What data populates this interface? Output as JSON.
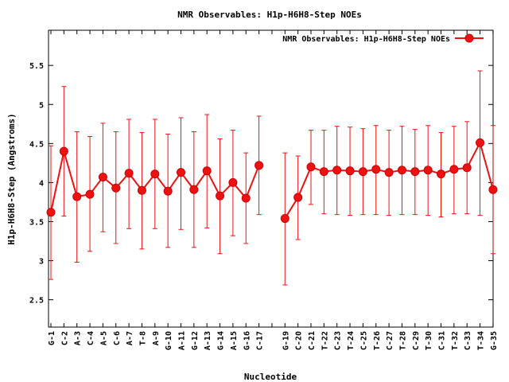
{
  "chart_data": {
    "type": "line",
    "title": "NMR Observables: H1p-H6H8-Step NOEs",
    "xlabel": "Nucleotide",
    "ylabel": "H1p-H6H8-Step (Angstroms)",
    "ylim": [
      2.15,
      5.95
    ],
    "yticks": [
      2.5,
      3,
      3.5,
      4,
      4.5,
      5,
      5.5
    ],
    "ytick_labels": [
      "2.5",
      "3",
      "3.5",
      "4",
      "4.5",
      "5",
      "5.5"
    ],
    "grid": false,
    "legend_position": "top-right",
    "line_color": "#ee1111",
    "error_bars": true,
    "categories": [
      "G-1",
      "C-2",
      "A-3",
      "C-4",
      "A-5",
      "C-6",
      "A-7",
      "T-8",
      "A-9",
      "G-10",
      "A-11",
      "G-12",
      "A-13",
      "G-14",
      "A-15",
      "G-16",
      "C-17",
      "",
      "G-19",
      "C-20",
      "C-21",
      "T-22",
      "C-23",
      "T-24",
      "C-25",
      "T-26",
      "C-27",
      "T-28",
      "C-29",
      "T-30",
      "C-31",
      "T-32",
      "C-33",
      "T-34",
      "G-35"
    ],
    "series": [
      {
        "name": "NMR Observables: H1p-H6H8-Step NOEs",
        "values": [
          3.62,
          4.4,
          3.82,
          3.85,
          4.07,
          3.93,
          4.12,
          3.9,
          4.11,
          3.89,
          4.13,
          3.91,
          4.15,
          3.83,
          4.0,
          3.8,
          4.22,
          null,
          3.54,
          3.81,
          4.2,
          4.14,
          4.16,
          4.15,
          4.14,
          4.17,
          4.13,
          4.16,
          4.14,
          4.16,
          4.11,
          4.17,
          4.19,
          4.51,
          3.91
        ],
        "upper": [
          4.47,
          5.23,
          4.65,
          4.59,
          4.76,
          4.65,
          4.81,
          4.64,
          4.81,
          4.62,
          4.83,
          4.65,
          4.87,
          4.56,
          4.67,
          4.38,
          4.85,
          null,
          4.38,
          4.34,
          4.67,
          4.67,
          4.72,
          4.71,
          4.69,
          4.73,
          4.67,
          4.72,
          4.68,
          4.73,
          4.64,
          4.72,
          4.78,
          5.43,
          4.73
        ],
        "lower": [
          2.76,
          3.57,
          2.98,
          3.12,
          3.37,
          3.22,
          3.41,
          3.15,
          3.41,
          3.17,
          3.4,
          3.17,
          3.42,
          3.09,
          3.32,
          3.22,
          3.59,
          null,
          2.69,
          3.27,
          3.72,
          3.6,
          3.59,
          3.58,
          3.59,
          3.59,
          3.58,
          3.59,
          3.59,
          3.58,
          3.56,
          3.6,
          3.6,
          3.58,
          3.09
        ]
      }
    ]
  }
}
